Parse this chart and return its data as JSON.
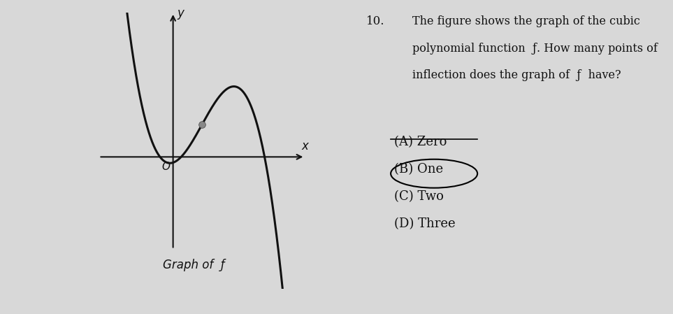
{
  "bg_color": "#d8d8d8",
  "panel_bg": "#e8e8e8",
  "question_number": "10.",
  "question_text_line1": "The figure shows the graph of the cubic",
  "question_text_line2": "polynomial function  ƒ. How many points of",
  "question_text_line3": "inflection does the graph of  ƒ  have?",
  "choices": [
    "(A) Zero",
    "(B) One",
    "(C) Two",
    "(D) Three"
  ],
  "circled_choice": 1,
  "underlined_choice": 0,
  "graph_label": "Graph of  ƒ",
  "axis_label_x": "x",
  "axis_label_y": "y",
  "origin_label": "O",
  "curve_color": "#111111",
  "text_color": "#111111",
  "axis_color": "#111111",
  "curve_lw": 2.2,
  "infl_dot_color": "#666666",
  "infl_dot_size": 7
}
